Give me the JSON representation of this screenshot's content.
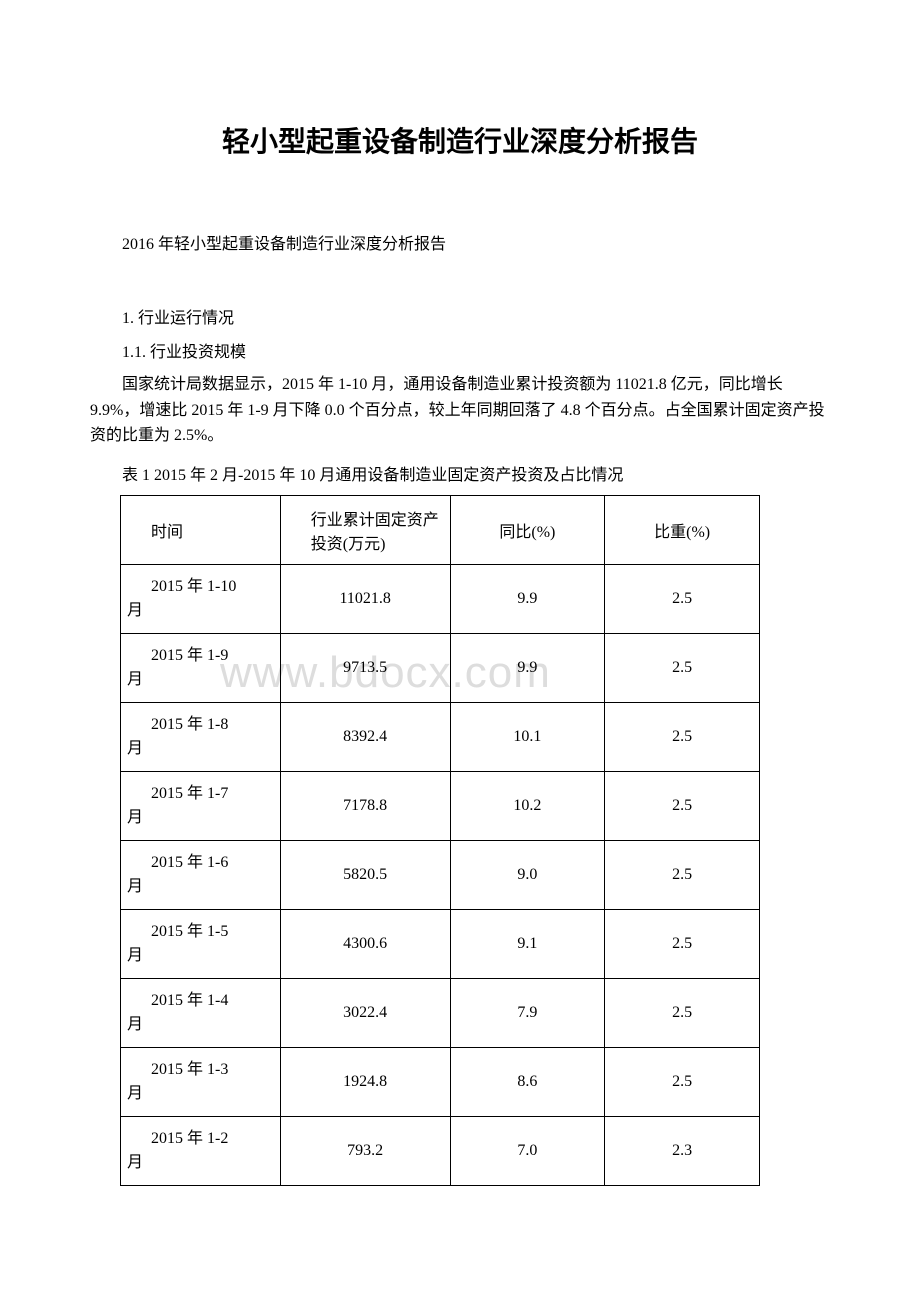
{
  "title": "轻小型起重设备制造行业深度分析报告",
  "subtitle": "2016 年轻小型起重设备制造行业深度分析报告",
  "section1": "1. 行业运行情况",
  "section1_1": "1.1. 行业投资规模",
  "paragraph": "国家统计局数据显示，2015 年 1-10 月，通用设备制造业累计投资额为 11021.8 亿元，同比增长 9.9%，增速比 2015 年 1-9 月下降 0.0 个百分点，较上年同期回落了 4.8 个百分点。占全国累计固定资产投资的比重为 2.5%。",
  "table_caption": "表 1 2015 年 2 月-2015 年 10 月通用设备制造业固定资产投资及占比情况",
  "watermark": "www.bdocx.com",
  "colors": {
    "text": "#000000",
    "background": "#ffffff",
    "border": "#000000",
    "watermark": "#dddddd"
  },
  "table": {
    "columns": [
      {
        "key": "time",
        "label": "时间"
      },
      {
        "key": "value",
        "label": "行业累计固定资产投资(万元)"
      },
      {
        "key": "yoy",
        "label": "同比(%)"
      },
      {
        "key": "weight",
        "label": "比重(%)"
      }
    ],
    "rows": [
      {
        "time_a": "2015 年 1-10",
        "time_b": "月",
        "value": "11021.8",
        "yoy": "9.9",
        "weight": "2.5"
      },
      {
        "time_a": "2015 年 1-9",
        "time_b": "月",
        "value": "9713.5",
        "yoy": "9.9",
        "weight": "2.5"
      },
      {
        "time_a": "2015 年 1-8",
        "time_b": "月",
        "value": "8392.4",
        "yoy": "10.1",
        "weight": "2.5"
      },
      {
        "time_a": "2015 年 1-7",
        "time_b": "月",
        "value": "7178.8",
        "yoy": "10.2",
        "weight": "2.5"
      },
      {
        "time_a": "2015 年 1-6",
        "time_b": "月",
        "value": "5820.5",
        "yoy": "9.0",
        "weight": "2.5"
      },
      {
        "time_a": "2015 年 1-5",
        "time_b": "月",
        "value": "4300.6",
        "yoy": "9.1",
        "weight": "2.5"
      },
      {
        "time_a": "2015 年 1-4",
        "time_b": "月",
        "value": "3022.4",
        "yoy": "7.9",
        "weight": "2.5"
      },
      {
        "time_a": "2015 年 1-3",
        "time_b": "月",
        "value": "1924.8",
        "yoy": "8.6",
        "weight": "2.5"
      },
      {
        "time_a": "2015 年 1-2",
        "time_b": "月",
        "value": "793.2",
        "yoy": "7.0",
        "weight": "2.3"
      }
    ]
  }
}
